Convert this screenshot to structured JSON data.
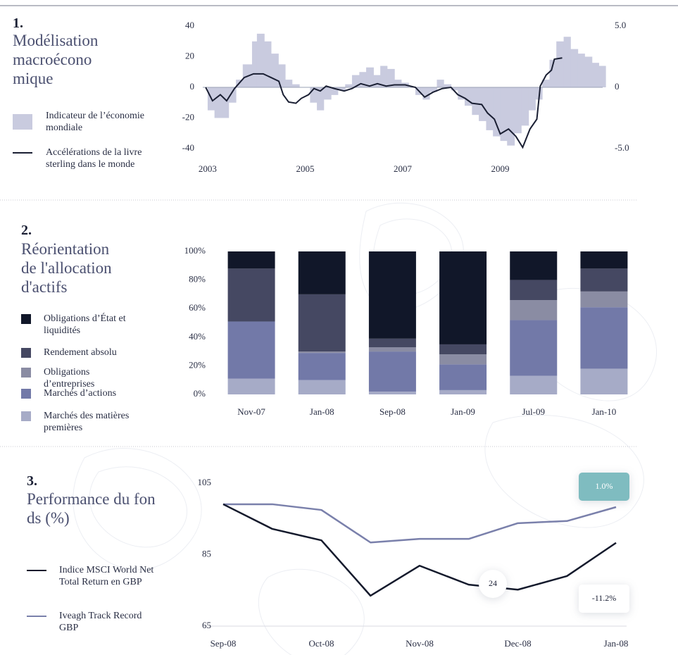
{
  "chart_data": [
    {
      "type": "combo",
      "number": "1.",
      "title": "Modélisation macroéconomique",
      "xlim": [
        2002.9,
        2011.1
      ],
      "xticks": [
        2003,
        2005,
        2007,
        2009
      ],
      "ylim": [
        -40,
        40
      ],
      "yticks": [
        40,
        20,
        0,
        -20,
        -40
      ],
      "y2lim": [
        -5,
        5
      ],
      "y2ticks": [
        {
          "value": 5,
          "label": "5.0"
        },
        0,
        {
          "value": -5,
          "label": "-5.0"
        }
      ],
      "series": [
        {
          "name": "Indicateur de l’économie mondiale",
          "type": "area",
          "color": "#c9cbdf",
          "x": [
            2003.0,
            2003.14,
            2003.29,
            2003.43,
            2003.58,
            2003.72,
            2003.91,
            2004.01,
            2004.16,
            2004.3,
            2004.45,
            2004.59,
            2004.73,
            2004.88,
            2005.1,
            2005.24,
            2005.38,
            2005.53,
            2005.67,
            2005.82,
            2005.96,
            2006.11,
            2006.25,
            2006.4,
            2006.54,
            2006.68,
            2006.83,
            2006.97,
            2007.12,
            2007.26,
            2007.41,
            2007.55,
            2007.7,
            2007.84,
            2007.99,
            2008.13,
            2008.27,
            2008.42,
            2008.56,
            2008.71,
            2008.85,
            2009.0,
            2009.14,
            2009.29,
            2009.43,
            2009.58,
            2009.72,
            2009.86,
            2010.01,
            2010.15,
            2010.3,
            2010.44,
            2010.59,
            2010.73,
            2010.88,
            2011.02
          ],
          "values": [
            -15,
            -20,
            -20,
            -10,
            5,
            15,
            30,
            35,
            30,
            22,
            15,
            5,
            2,
            0,
            -10,
            -15,
            -8,
            -5,
            -2,
            2,
            8,
            10,
            13,
            8,
            14,
            12,
            5,
            3,
            0,
            -5,
            -8,
            -3,
            5,
            2,
            -2,
            -8,
            -12,
            -18,
            -22,
            -28,
            -32,
            -35,
            -38,
            -30,
            -25,
            -15,
            -8,
            5,
            18,
            30,
            33,
            25,
            22,
            20,
            16,
            14
          ]
        },
        {
          "name": "Accélérations de la livre sterling dans le monde",
          "type": "line",
          "axis": "y2",
          "color": "#1a1f33",
          "x": [
            2002.96,
            2003.1,
            2003.26,
            2003.39,
            2003.55,
            2003.75,
            2003.94,
            2004.14,
            2004.3,
            2004.46,
            2004.55,
            2004.66,
            2004.81,
            2004.92,
            2005.07,
            2005.18,
            2005.31,
            2005.43,
            2005.6,
            2005.8,
            2005.96,
            2006.14,
            2006.32,
            2006.48,
            2006.66,
            2006.83,
            2007.05,
            2007.26,
            2007.45,
            2007.62,
            2007.81,
            2007.99,
            2008.13,
            2008.28,
            2008.42,
            2008.62,
            2008.74,
            2008.88,
            2009.0,
            2009.17,
            2009.32,
            2009.46,
            2009.61,
            2009.75,
            2009.82,
            2009.94,
            2010.05,
            2010.11,
            2010.27
          ],
          "values": [
            0,
            -1.1,
            -0.6,
            -1.1,
            -0.1,
            0.8,
            1.1,
            1.1,
            0.8,
            0.5,
            -0.6,
            -1.2,
            -1.3,
            -0.9,
            -0.6,
            -0.1,
            -0.3,
            0.1,
            -0.1,
            -0.3,
            -0.1,
            0.3,
            0.1,
            0.3,
            0.1,
            0.2,
            0.2,
            0,
            -0.8,
            -0.4,
            -0.1,
            0,
            -0.6,
            -0.9,
            -1.3,
            -1.4,
            -2.1,
            -2.6,
            -3.8,
            -3.4,
            -4.0,
            -4.9,
            -3.4,
            -2.6,
            0.1,
            1.0,
            1.4,
            2.3,
            2.4
          ]
        }
      ]
    },
    {
      "type": "bar",
      "stacked": true,
      "number": "2.",
      "title": "Réorientation de l'allocation d'actifs",
      "categories": [
        "Nov-07",
        "Jan-08",
        "Sep-08",
        "Jan-09",
        "Jul-09",
        "Jan-10"
      ],
      "ylim": [
        0,
        100
      ],
      "yticks": [
        {
          "value": 100,
          "label": "100%"
        },
        {
          "value": 80,
          "label": "80%"
        },
        {
          "value": 60,
          "label": "60%"
        },
        {
          "value": 40,
          "label": "40%"
        },
        {
          "value": 20,
          "label": "20%"
        },
        {
          "value": 0,
          "label": "0%"
        }
      ],
      "series": [
        {
          "name": "Obligations d’État et liquidités",
          "color": "#111729",
          "values": [
            12,
            30,
            61,
            65,
            20,
            12
          ]
        },
        {
          "name": "Rendement absolu",
          "color": "#454862",
          "values": [
            37,
            40,
            6,
            7,
            14,
            16
          ]
        },
        {
          "name": "Obligations d’entreprises",
          "color": "#8a8ca3",
          "values": [
            0,
            1,
            3,
            7,
            14,
            11
          ]
        },
        {
          "name": "Marchés d’actions",
          "color": "#7279a8",
          "values": [
            40,
            19,
            28,
            18,
            39,
            43
          ]
        },
        {
          "name": "Marchés des matières premières",
          "color": "#a6abc7",
          "values": [
            11,
            10,
            2,
            3,
            13,
            18
          ]
        }
      ]
    },
    {
      "type": "line",
      "number": "3.",
      "title": "Performance du fonds (%)",
      "categories": [
        "Sep-08",
        null,
        "Oct-08",
        null,
        "Nov-08",
        null,
        "Dec-08",
        null,
        "Jan-08"
      ],
      "ylim": [
        65,
        105
      ],
      "yticks": [
        105,
        85,
        65
      ],
      "series": [
        {
          "name": "Indice MSCI World Net Total Return en GBP",
          "color": "#141a2c",
          "values": [
            99.1,
            92.2,
            89.0,
            73.5,
            81.9,
            76.6,
            75.2,
            79.0,
            88.3
          ]
        },
        {
          "name": "Iveagh Track Record GBP",
          "color": "#7a80ab",
          "values": [
            99.1,
            99.1,
            97.5,
            88.4,
            89.4,
            89.4,
            93.8,
            94.4,
            98.3
          ]
        }
      ],
      "annotations": [
        "1.0%",
        "24",
        "-11.2%"
      ]
    }
  ]
}
